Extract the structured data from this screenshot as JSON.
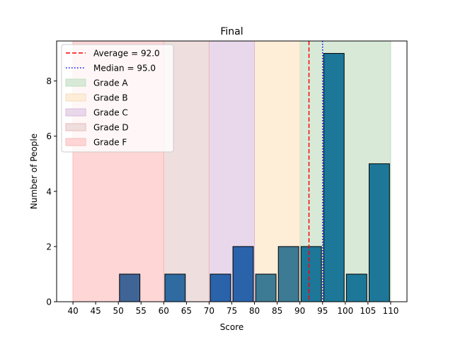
{
  "chart_data": {
    "type": "bar",
    "title": "Final",
    "xlabel": "Score",
    "ylabel": "Number of People",
    "xlim": [
      36.4,
      113.6
    ],
    "ylim": [
      0,
      9.45
    ],
    "xticks": [
      40,
      45,
      50,
      55,
      60,
      65,
      70,
      75,
      80,
      85,
      90,
      95,
      100,
      105,
      110
    ],
    "yticks": [
      0,
      2,
      4,
      6,
      8
    ],
    "bin_width": 5,
    "rwidth": 0.9,
    "bins": [
      {
        "start": 50,
        "end": 55,
        "count": 1,
        "color": "#3f6496"
      },
      {
        "start": 60,
        "end": 65,
        "count": 1,
        "color": "#2f6aa0"
      },
      {
        "start": 70,
        "end": 75,
        "count": 1,
        "color": "#2b63aa"
      },
      {
        "start": 75,
        "end": 80,
        "count": 2,
        "color": "#2b63aa"
      },
      {
        "start": 80,
        "end": 85,
        "count": 1,
        "color": "#3d7a94"
      },
      {
        "start": 85,
        "end": 90,
        "count": 2,
        "color": "#3d7a94"
      },
      {
        "start": 90,
        "end": 95,
        "count": 2,
        "color": "#1d7799"
      },
      {
        "start": 95,
        "end": 100,
        "count": 9,
        "color": "#1d7799"
      },
      {
        "start": 100,
        "end": 105,
        "count": 1,
        "color": "#1d7799"
      },
      {
        "start": 105,
        "end": 110,
        "count": 5,
        "color": "#1d7799"
      }
    ],
    "grade_spans": [
      {
        "label": "Grade A",
        "start": 90,
        "end": 110,
        "color": "#d8ead7",
        "edge": "#c2dcc0"
      },
      {
        "label": "Grade B",
        "start": 80,
        "end": 90,
        "color": "#feeed8",
        "edge": "#f3dcbd"
      },
      {
        "label": "Grade C",
        "start": 70,
        "end": 80,
        "color": "#e9d8ec",
        "edge": "#d9b9d8"
      },
      {
        "label": "Grade D",
        "start": 60,
        "end": 70,
        "color": "#efdede",
        "edge": "#e8b8b8"
      },
      {
        "label": "Grade F",
        "start": 40,
        "end": 60,
        "color": "#ffd6d6",
        "edge": "#f7baba"
      }
    ],
    "lines": [
      {
        "label": "Average = 92.0",
        "x": 92.0,
        "color": "#ff0000",
        "style": "dashed"
      },
      {
        "label": "Median = 95.0",
        "x": 95.0,
        "color": "#0000ff",
        "style": "dotted"
      }
    ],
    "legend": {
      "placement": "top-left",
      "entries": [
        "Average = 92.0",
        "Median = 95.0",
        "Grade A",
        "Grade B",
        "Grade C",
        "Grade D",
        "Grade F"
      ]
    },
    "grid": false
  }
}
